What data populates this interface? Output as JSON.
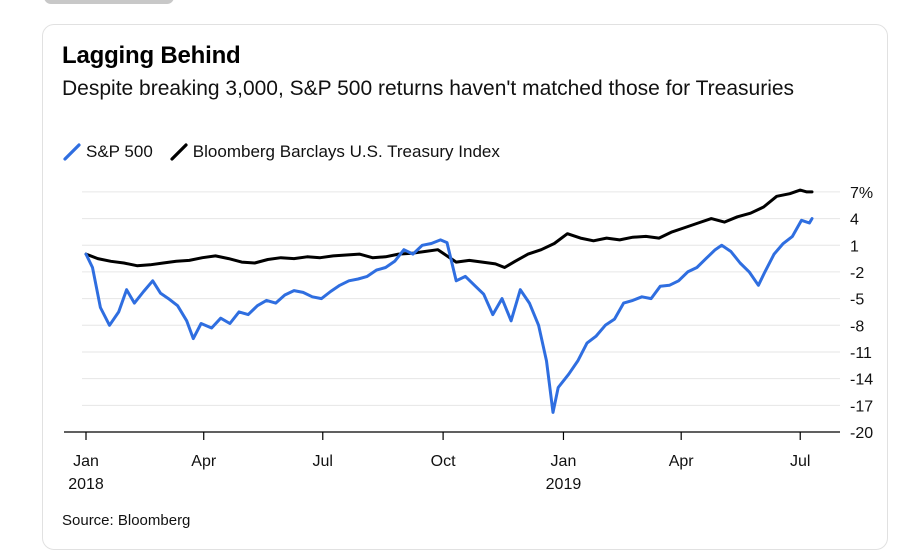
{
  "chart_data": {
    "type": "line",
    "title": "Lagging Behind",
    "subtitle": "Despite breaking 3,000, S&P 500 returns haven't matched those for Treasuries",
    "source": "Source: Bloomberg",
    "ylim": [
      -20,
      8
    ],
    "y_ticks": [
      7,
      4,
      1,
      -2,
      -5,
      -8,
      -11,
      -14,
      -17,
      -20
    ],
    "y_tick_labels": [
      "7%",
      "4",
      "1",
      "-2",
      "-5",
      "-8",
      "-11",
      "-14",
      "-17",
      "-20"
    ],
    "x_range": [
      "2018-01-01",
      "2019-07-10"
    ],
    "x_ticks": [
      {
        "date": "2018-01-01",
        "label": "Jan",
        "year": "2018"
      },
      {
        "date": "2018-04-01",
        "label": "Apr",
        "year": ""
      },
      {
        "date": "2018-07-01",
        "label": "Jul",
        "year": ""
      },
      {
        "date": "2018-10-01",
        "label": "Oct",
        "year": ""
      },
      {
        "date": "2019-01-01",
        "label": "Jan",
        "year": "2019"
      },
      {
        "date": "2019-04-01",
        "label": "Apr",
        "year": ""
      },
      {
        "date": "2019-07-01",
        "label": "Jul",
        "year": ""
      }
    ],
    "legend_position": "top-left",
    "series": [
      {
        "name": "S&P 500",
        "color": "#2f6ee0",
        "points": [
          [
            "2018-01-01",
            0
          ],
          [
            "2018-01-06",
            -1.5
          ],
          [
            "2018-01-12",
            -6
          ],
          [
            "2018-01-19",
            -8
          ],
          [
            "2018-01-26",
            -6.5
          ],
          [
            "2018-02-01",
            -4
          ],
          [
            "2018-02-07",
            -5.5
          ],
          [
            "2018-02-14",
            -4.2
          ],
          [
            "2018-02-21",
            -3
          ],
          [
            "2018-02-27",
            -4.4
          ],
          [
            "2018-03-05",
            -5
          ],
          [
            "2018-03-12",
            -5.8
          ],
          [
            "2018-03-19",
            -7.5
          ],
          [
            "2018-03-24",
            -9.5
          ],
          [
            "2018-03-30",
            -7.8
          ],
          [
            "2018-04-07",
            -8.3
          ],
          [
            "2018-04-14",
            -7.2
          ],
          [
            "2018-04-21",
            -7.8
          ],
          [
            "2018-04-28",
            -6.5
          ],
          [
            "2018-05-05",
            -6.8
          ],
          [
            "2018-05-12",
            -5.8
          ],
          [
            "2018-05-19",
            -5.2
          ],
          [
            "2018-05-26",
            -5.5
          ],
          [
            "2018-06-02",
            -4.6
          ],
          [
            "2018-06-09",
            -4.1
          ],
          [
            "2018-06-16",
            -4.3
          ],
          [
            "2018-06-23",
            -4.8
          ],
          [
            "2018-06-30",
            -5
          ],
          [
            "2018-07-07",
            -4.2
          ],
          [
            "2018-07-14",
            -3.5
          ],
          [
            "2018-07-21",
            -3
          ],
          [
            "2018-07-28",
            -2.8
          ],
          [
            "2018-08-04",
            -2.5
          ],
          [
            "2018-08-11",
            -1.8
          ],
          [
            "2018-08-18",
            -1.5
          ],
          [
            "2018-08-25",
            -0.8
          ],
          [
            "2018-09-01",
            0.5
          ],
          [
            "2018-09-08",
            0
          ],
          [
            "2018-09-15",
            1
          ],
          [
            "2018-09-22",
            1.2
          ],
          [
            "2018-09-29",
            1.6
          ],
          [
            "2018-10-04",
            1.3
          ],
          [
            "2018-10-11",
            -3
          ],
          [
            "2018-10-18",
            -2.5
          ],
          [
            "2018-10-25",
            -3.5
          ],
          [
            "2018-11-01",
            -4.5
          ],
          [
            "2018-11-08",
            -6.8
          ],
          [
            "2018-11-15",
            -5
          ],
          [
            "2018-11-22",
            -7.5
          ],
          [
            "2018-11-29",
            -4
          ],
          [
            "2018-12-06",
            -5.5
          ],
          [
            "2018-12-13",
            -8
          ],
          [
            "2018-12-19",
            -12
          ],
          [
            "2018-12-24",
            -17.8
          ],
          [
            "2018-12-28",
            -15
          ],
          [
            "2019-01-05",
            -13.5
          ],
          [
            "2019-01-12",
            -12
          ],
          [
            "2019-01-19",
            -10
          ],
          [
            "2019-01-26",
            -9.2
          ],
          [
            "2019-02-02",
            -8
          ],
          [
            "2019-02-09",
            -7.3
          ],
          [
            "2019-02-16",
            -5.5
          ],
          [
            "2019-02-23",
            -5.2
          ],
          [
            "2019-03-02",
            -4.8
          ],
          [
            "2019-03-09",
            -5
          ],
          [
            "2019-03-16",
            -3.6
          ],
          [
            "2019-03-23",
            -3.5
          ],
          [
            "2019-03-30",
            -3
          ],
          [
            "2019-04-06",
            -2
          ],
          [
            "2019-04-13",
            -1.5
          ],
          [
            "2019-04-20",
            -0.5
          ],
          [
            "2019-04-27",
            0.5
          ],
          [
            "2019-05-02",
            1
          ],
          [
            "2019-05-09",
            0.3
          ],
          [
            "2019-05-16",
            -1
          ],
          [
            "2019-05-23",
            -2
          ],
          [
            "2019-05-30",
            -3.5
          ],
          [
            "2019-06-04",
            -2
          ],
          [
            "2019-06-11",
            0
          ],
          [
            "2019-06-18",
            1.2
          ],
          [
            "2019-06-25",
            2
          ],
          [
            "2019-07-02",
            3.8
          ],
          [
            "2019-07-08",
            3.5
          ],
          [
            "2019-07-10",
            4
          ]
        ]
      },
      {
        "name": "Bloomberg Barclays U.S. Treasury Index",
        "color": "#000000",
        "points": [
          [
            "2018-01-01",
            0
          ],
          [
            "2018-01-10",
            -0.5
          ],
          [
            "2018-01-20",
            -0.8
          ],
          [
            "2018-01-30",
            -1
          ],
          [
            "2018-02-09",
            -1.3
          ],
          [
            "2018-02-19",
            -1.2
          ],
          [
            "2018-03-01",
            -1
          ],
          [
            "2018-03-11",
            -0.8
          ],
          [
            "2018-03-21",
            -0.7
          ],
          [
            "2018-03-31",
            -0.4
          ],
          [
            "2018-04-10",
            -0.2
          ],
          [
            "2018-04-20",
            -0.5
          ],
          [
            "2018-04-30",
            -0.9
          ],
          [
            "2018-05-10",
            -1
          ],
          [
            "2018-05-20",
            -0.6
          ],
          [
            "2018-05-30",
            -0.4
          ],
          [
            "2018-06-09",
            -0.5
          ],
          [
            "2018-06-19",
            -0.3
          ],
          [
            "2018-06-29",
            -0.4
          ],
          [
            "2018-07-09",
            -0.2
          ],
          [
            "2018-07-19",
            -0.1
          ],
          [
            "2018-07-29",
            0
          ],
          [
            "2018-08-08",
            -0.4
          ],
          [
            "2018-08-18",
            -0.3
          ],
          [
            "2018-08-28",
            0
          ],
          [
            "2018-09-07",
            0.1
          ],
          [
            "2018-09-17",
            0.3
          ],
          [
            "2018-09-27",
            0.5
          ],
          [
            "2018-10-04",
            -0.2
          ],
          [
            "2018-10-11",
            -0.9
          ],
          [
            "2018-10-21",
            -0.7
          ],
          [
            "2018-10-31",
            -0.9
          ],
          [
            "2018-11-10",
            -1.1
          ],
          [
            "2018-11-17",
            -1.5
          ],
          [
            "2018-11-25",
            -0.8
          ],
          [
            "2018-12-05",
            0
          ],
          [
            "2018-12-15",
            0.5
          ],
          [
            "2018-12-25",
            1.2
          ],
          [
            "2019-01-04",
            2.3
          ],
          [
            "2019-01-14",
            1.8
          ],
          [
            "2019-01-24",
            1.5
          ],
          [
            "2019-02-03",
            1.8
          ],
          [
            "2019-02-13",
            1.6
          ],
          [
            "2019-02-23",
            1.9
          ],
          [
            "2019-03-05",
            2
          ],
          [
            "2019-03-15",
            1.8
          ],
          [
            "2019-03-25",
            2.5
          ],
          [
            "2019-04-04",
            3
          ],
          [
            "2019-04-14",
            3.5
          ],
          [
            "2019-04-24",
            4
          ],
          [
            "2019-05-04",
            3.6
          ],
          [
            "2019-05-14",
            4.2
          ],
          [
            "2019-05-24",
            4.6
          ],
          [
            "2019-06-03",
            5.3
          ],
          [
            "2019-06-13",
            6.5
          ],
          [
            "2019-06-23",
            6.8
          ],
          [
            "2019-07-01",
            7.2
          ],
          [
            "2019-07-06",
            7
          ],
          [
            "2019-07-10",
            7
          ]
        ]
      }
    ]
  }
}
